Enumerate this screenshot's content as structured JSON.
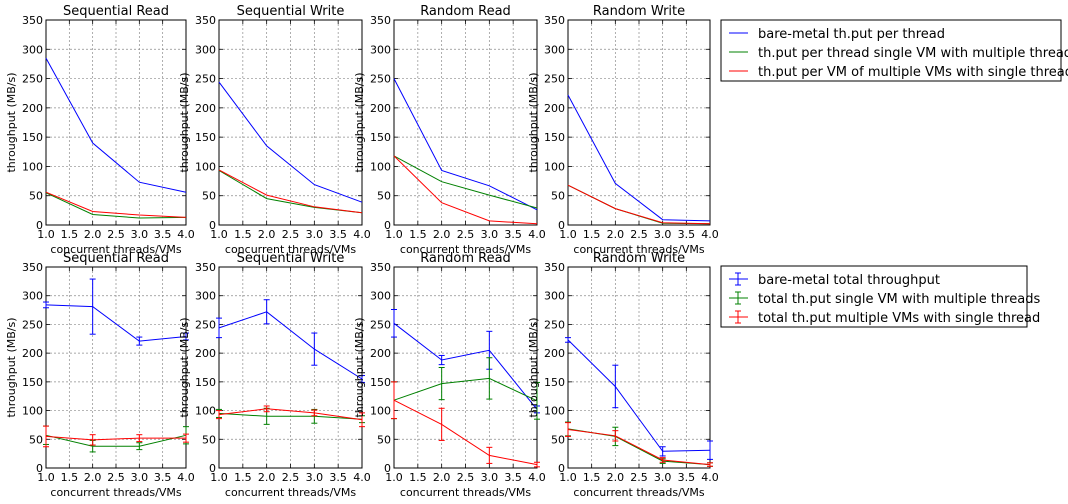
{
  "legend_line": [
    {
      "label": "bare-metal th.put per thread",
      "color": "#0000ff"
    },
    {
      "label": "th.put per thread single VM with multiple threads",
      "color": "#008000"
    },
    {
      "label": "th.put per VM of multiple VMs with single thread",
      "color": "#ff0000"
    }
  ],
  "legend_err": [
    {
      "label": "bare-metal total throughput",
      "color": "#0000ff"
    },
    {
      "label": "total th.put single VM with multiple threads",
      "color": "#008000"
    },
    {
      "label": "total th.put multiple VMs with single thread",
      "color": "#ff0000"
    }
  ],
  "chart_data": [
    {
      "type": "line",
      "title": "Sequential Read",
      "xlabel": "concurrent threads/VMs",
      "ylabel": "throughput (MB/s)",
      "xlim": [
        1.0,
        4.0
      ],
      "ylim": [
        0,
        350
      ],
      "grid": true,
      "x_ticks": [
        "1.0",
        "1.5",
        "2.0",
        "2.5",
        "3.0",
        "3.5",
        "4.0"
      ],
      "y_ticks": [
        "0",
        "50",
        "100",
        "150",
        "200",
        "250",
        "300",
        "350"
      ],
      "x": [
        1,
        2,
        3,
        4
      ],
      "series": [
        {
          "color": "#0000ff",
          "values": [
            285,
            140,
            73,
            56
          ]
        },
        {
          "color": "#008000",
          "values": [
            55,
            18,
            12,
            13
          ]
        },
        {
          "color": "#ff0000",
          "values": [
            56,
            23,
            17,
            13
          ]
        }
      ]
    },
    {
      "type": "line",
      "title": "Sequential Write",
      "xlabel": "concurrent threads/VMs",
      "ylabel": "throughput (MB/s)",
      "xlim": [
        1.0,
        4.0
      ],
      "ylim": [
        0,
        350
      ],
      "grid": true,
      "x_ticks": [
        "1.0",
        "1.5",
        "2.0",
        "2.5",
        "3.0",
        "3.5",
        "4.0"
      ],
      "y_ticks": [
        "0",
        "50",
        "100",
        "150",
        "200",
        "250",
        "300",
        "350"
      ],
      "x": [
        1,
        2,
        3,
        4
      ],
      "series": [
        {
          "color": "#0000ff",
          "values": [
            244,
            135,
            69,
            39
          ]
        },
        {
          "color": "#008000",
          "values": [
            93,
            45,
            30,
            21
          ]
        },
        {
          "color": "#ff0000",
          "values": [
            94,
            51,
            31,
            21
          ]
        }
      ]
    },
    {
      "type": "line",
      "title": "Random Read",
      "xlabel": "concurrent threads/VMs",
      "ylabel": "throughput (MB/s)",
      "xlim": [
        1.0,
        4.0
      ],
      "ylim": [
        0,
        350
      ],
      "grid": true,
      "x_ticks": [
        "1.0",
        "1.5",
        "2.0",
        "2.5",
        "3.0",
        "3.5",
        "4.0"
      ],
      "y_ticks": [
        "0",
        "50",
        "100",
        "150",
        "200",
        "250",
        "300",
        "350"
      ],
      "x": [
        1,
        2,
        3,
        4
      ],
      "series": [
        {
          "color": "#0000ff",
          "values": [
            250,
            93,
            67,
            26
          ]
        },
        {
          "color": "#008000",
          "values": [
            118,
            74,
            51,
            29
          ]
        },
        {
          "color": "#ff0000",
          "values": [
            118,
            38,
            7,
            2
          ]
        }
      ]
    },
    {
      "type": "line",
      "title": "Random Write",
      "xlabel": "concurrent threads/VMs",
      "ylabel": "throughput (MB/s)",
      "xlim": [
        1.0,
        4.0
      ],
      "ylim": [
        0,
        350
      ],
      "grid": true,
      "x_ticks": [
        "1.0",
        "1.5",
        "2.0",
        "2.5",
        "3.0",
        "3.5",
        "4.0"
      ],
      "y_ticks": [
        "0",
        "50",
        "100",
        "150",
        "200",
        "250",
        "300",
        "350"
      ],
      "x": [
        1,
        2,
        3,
        4
      ],
      "series": [
        {
          "color": "#0000ff",
          "values": [
            222,
            71,
            9,
            7
          ]
        },
        {
          "color": "#008000",
          "values": [
            68,
            28,
            3,
            2
          ]
        },
        {
          "color": "#ff0000",
          "values": [
            68,
            28,
            4,
            2
          ]
        }
      ]
    },
    {
      "type": "line",
      "title": "Sequential Read",
      "xlabel": "concurrent threads/VMs",
      "ylabel": "throughput (MB/s)",
      "xlim": [
        1.0,
        4.0
      ],
      "ylim": [
        0,
        350
      ],
      "grid": true,
      "x_ticks": [
        "1.0",
        "1.5",
        "2.0",
        "2.5",
        "3.0",
        "3.5",
        "4.0"
      ],
      "y_ticks": [
        "0",
        "50",
        "100",
        "150",
        "200",
        "250",
        "300",
        "350"
      ],
      "x": [
        1,
        2,
        3,
        4
      ],
      "series": [
        {
          "color": "#0000ff",
          "values": [
            284,
            281,
            221,
            229
          ],
          "errors": [
            5,
            48,
            7,
            6
          ]
        },
        {
          "color": "#008000",
          "values": [
            57,
            38,
            38,
            57
          ],
          "errors": [
            16,
            10,
            6,
            15
          ]
        },
        {
          "color": "#ff0000",
          "values": [
            55,
            49,
            52,
            52
          ],
          "errors": [
            18,
            9,
            6,
            7
          ]
        }
      ]
    },
    {
      "type": "line",
      "title": "Sequential Write",
      "xlabel": "concurrent threads/VMs",
      "ylabel": "throughput (MB/s)",
      "xlim": [
        1.0,
        4.0
      ],
      "ylim": [
        0,
        350
      ],
      "grid": true,
      "x_ticks": [
        "1.0",
        "1.5",
        "2.0",
        "2.5",
        "3.0",
        "3.5",
        "4.0"
      ],
      "y_ticks": [
        "0",
        "50",
        "100",
        "150",
        "200",
        "250",
        "300",
        "350"
      ],
      "x": [
        1,
        2,
        3,
        4
      ],
      "series": [
        {
          "color": "#0000ff",
          "values": [
            244,
            272,
            207,
            155
          ],
          "errors": [
            17,
            21,
            28,
            6
          ]
        },
        {
          "color": "#008000",
          "values": [
            95,
            90,
            90,
            85
          ],
          "errors": [
            7,
            14,
            12,
            6
          ]
        },
        {
          "color": "#ff0000",
          "values": [
            93,
            103,
            96,
            84
          ],
          "errors": [
            7,
            5,
            5,
            12
          ]
        }
      ]
    },
    {
      "type": "line",
      "title": "Random Read",
      "xlabel": "concurrent threads/VMs",
      "ylabel": "throughput (MB/s)",
      "xlim": [
        1.0,
        4.0
      ],
      "ylim": [
        0,
        350
      ],
      "grid": true,
      "x_ticks": [
        "1.0",
        "1.5",
        "2.0",
        "2.5",
        "3.0",
        "3.5",
        "4.0"
      ],
      "y_ticks": [
        "0",
        "50",
        "100",
        "150",
        "200",
        "250",
        "300",
        "350"
      ],
      "x": [
        1,
        2,
        3,
        4
      ],
      "series": [
        {
          "color": "#0000ff",
          "values": [
            252,
            188,
            205,
            102
          ],
          "errors": [
            24,
            8,
            33,
            6
          ]
        },
        {
          "color": "#008000",
          "values": [
            118,
            147,
            156,
            117
          ],
          "errors": [
            32,
            28,
            36,
            32
          ]
        },
        {
          "color": "#ff0000",
          "values": [
            118,
            76,
            22,
            6
          ],
          "errors": [
            32,
            28,
            14,
            4
          ]
        }
      ]
    },
    {
      "type": "line",
      "title": "Random Write",
      "xlabel": "concurrent threads/VMs",
      "ylabel": "throughput (MB/s)",
      "xlim": [
        1.0,
        4.0
      ],
      "ylim": [
        0,
        350
      ],
      "grid": true,
      "x_ticks": [
        "1.0",
        "1.5",
        "2.0",
        "2.5",
        "3.0",
        "3.5",
        "4.0"
      ],
      "y_ticks": [
        "0",
        "50",
        "100",
        "150",
        "200",
        "250",
        "300",
        "350"
      ],
      "x": [
        1,
        2,
        3,
        4
      ],
      "series": [
        {
          "color": "#0000ff",
          "values": [
            223,
            142,
            29,
            31
          ],
          "errors": [
            4,
            37,
            8,
            16
          ]
        },
        {
          "color": "#008000",
          "values": [
            68,
            55,
            12,
            6
          ],
          "errors": [
            12,
            16,
            4,
            3
          ]
        },
        {
          "color": "#ff0000",
          "values": [
            67,
            56,
            14,
            6
          ],
          "errors": [
            12,
            9,
            4,
            3
          ]
        }
      ]
    }
  ]
}
